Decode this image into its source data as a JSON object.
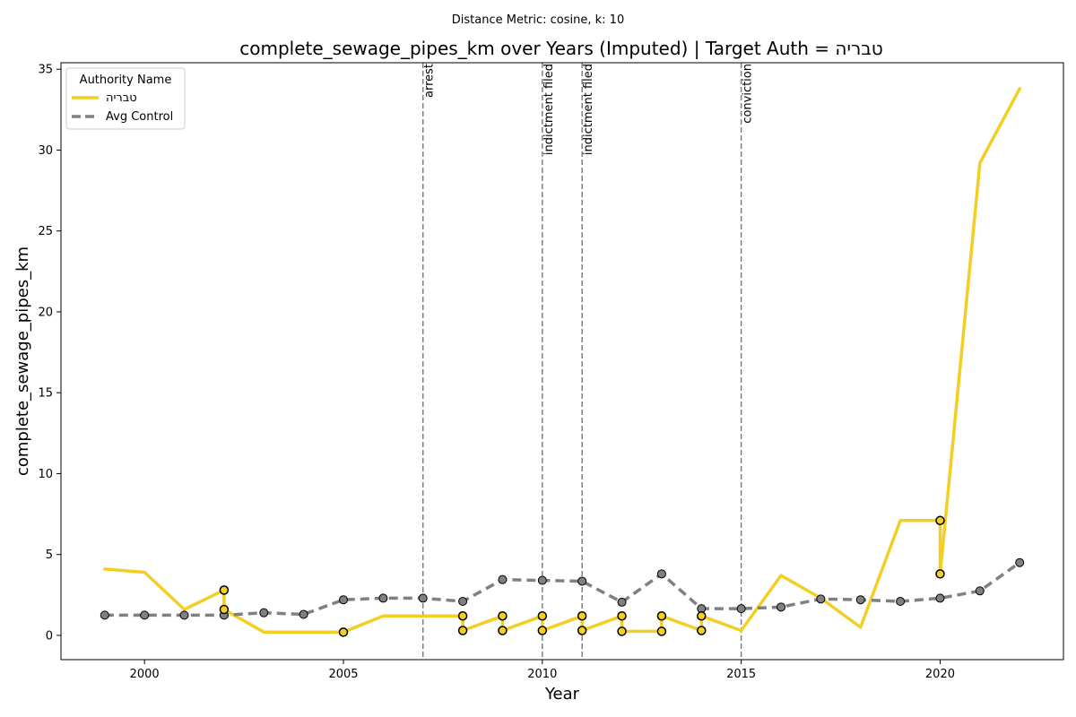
{
  "suptitle": "Distance Metric: cosine, k: 10",
  "chart_data": {
    "type": "line",
    "title": "complete_sewage_pipes_km over Years (Imputed) | Target Auth = טבריה",
    "xlabel": "Year",
    "ylabel": "complete_sewage_pipes_km",
    "xlim": [
      1997.9,
      2023.1
    ],
    "ylim": [
      -1.5,
      35.4
    ],
    "xticks": [
      2000,
      2005,
      2010,
      2015,
      2020
    ],
    "yticks": [
      0,
      5,
      10,
      15,
      20,
      25,
      30,
      35
    ],
    "grid": false,
    "legend": {
      "title": "Authority Name",
      "placement": "top-left"
    },
    "series": [
      {
        "name": "טבריה",
        "color": "#f2cf22",
        "style": "solid",
        "points": [
          [
            1999,
            4.1
          ],
          [
            2000,
            3.9
          ],
          [
            2001,
            1.6
          ],
          [
            2002,
            2.8
          ],
          [
            2002,
            1.6
          ],
          [
            2003,
            0.2
          ],
          [
            2004,
            0.2
          ],
          [
            2005,
            0.2
          ],
          [
            2006,
            1.2
          ],
          [
            2007,
            1.2
          ],
          [
            2008,
            1.2
          ],
          [
            2008,
            0.3
          ],
          [
            2009,
            1.2
          ],
          [
            2009,
            0.3
          ],
          [
            2010,
            1.2
          ],
          [
            2010,
            0.3
          ],
          [
            2011,
            1.2
          ],
          [
            2011,
            0.3
          ],
          [
            2012,
            1.2
          ],
          [
            2012,
            0.25
          ],
          [
            2013,
            0.25
          ],
          [
            2013,
            1.2
          ],
          [
            2014,
            0.3
          ],
          [
            2014,
            1.2
          ],
          [
            2015,
            0.3
          ],
          [
            2016,
            3.7
          ],
          [
            2017,
            2.3
          ],
          [
            2018,
            0.5
          ],
          [
            2019,
            7.1
          ],
          [
            2020,
            7.1
          ],
          [
            2020,
            3.8
          ],
          [
            2021,
            29.2
          ],
          [
            2022,
            33.8
          ]
        ],
        "markers": [
          [
            2002,
            2.8
          ],
          [
            2002,
            1.6
          ],
          [
            2005,
            0.2
          ],
          [
            2008,
            1.2
          ],
          [
            2008,
            0.3
          ],
          [
            2009,
            1.2
          ],
          [
            2009,
            0.3
          ],
          [
            2010,
            1.2
          ],
          [
            2010,
            0.3
          ],
          [
            2011,
            1.2
          ],
          [
            2011,
            0.3
          ],
          [
            2012,
            1.2
          ],
          [
            2012,
            0.25
          ],
          [
            2013,
            1.2
          ],
          [
            2013,
            0.25
          ],
          [
            2014,
            1.2
          ],
          [
            2014,
            0.3
          ],
          [
            2020,
            7.1
          ],
          [
            2020,
            3.8
          ]
        ]
      },
      {
        "name": "Avg Control",
        "color": "#808080",
        "style": "dashed",
        "points": [
          [
            1999,
            1.25
          ],
          [
            2000,
            1.25
          ],
          [
            2001,
            1.25
          ],
          [
            2002,
            1.25
          ],
          [
            2003,
            1.4
          ],
          [
            2004,
            1.3
          ],
          [
            2005,
            2.2
          ],
          [
            2006,
            2.3
          ],
          [
            2007,
            2.3
          ],
          [
            2008,
            2.1
          ],
          [
            2009,
            3.45
          ],
          [
            2010,
            3.4
          ],
          [
            2011,
            3.35
          ],
          [
            2012,
            2.05
          ],
          [
            2013,
            3.8
          ],
          [
            2014,
            1.65
          ],
          [
            2015,
            1.65
          ],
          [
            2016,
            1.75
          ],
          [
            2017,
            2.25
          ],
          [
            2018,
            2.2
          ],
          [
            2019,
            2.1
          ],
          [
            2020,
            2.3
          ],
          [
            2021,
            2.75
          ],
          [
            2022,
            4.5
          ]
        ]
      }
    ],
    "events": [
      {
        "x": 2007,
        "label": "arrest"
      },
      {
        "x": 2010,
        "label": "indictment filed"
      },
      {
        "x": 2011,
        "label": "indictment filed"
      },
      {
        "x": 2015,
        "label": "conviction"
      }
    ]
  }
}
